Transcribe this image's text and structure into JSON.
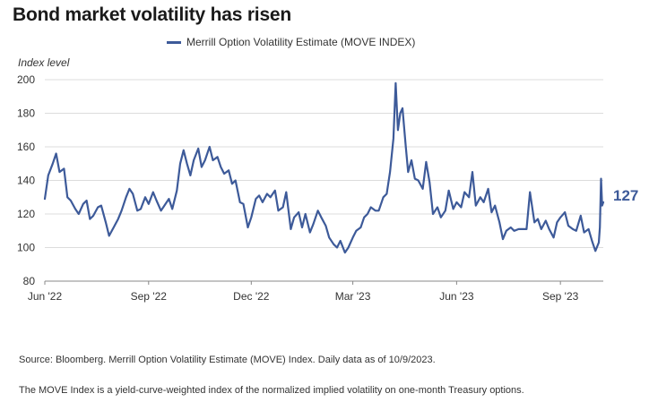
{
  "chart_data": {
    "type": "line",
    "title": "Bond market volatility has risen",
    "ylabel": "Index level",
    "xlabel": "",
    "ylim": [
      80,
      200
    ],
    "yticks": [
      80,
      100,
      120,
      140,
      160,
      180,
      200
    ],
    "xticks": [
      {
        "date": "2022-06-01",
        "label": "Jun '22"
      },
      {
        "date": "2022-09-01",
        "label": "Sep '22"
      },
      {
        "date": "2022-12-01",
        "label": "Dec '22"
      },
      {
        "date": "2023-03-01",
        "label": "Mar '23"
      },
      {
        "date": "2023-06-01",
        "label": "Jun '23"
      },
      {
        "date": "2023-09-01",
        "label": "Sep '23"
      }
    ],
    "xlim": [
      "2022-06-01",
      "2023-10-09"
    ],
    "grid": "horizontal",
    "legend_position": "top-center",
    "series": [
      {
        "name": "Merrill Option Volatility Estimate (MOVE INDEX)",
        "color": "#3d5a99",
        "end_label": "127",
        "points": [
          [
            "2022-06-01",
            129
          ],
          [
            "2022-06-04",
            143
          ],
          [
            "2022-06-08",
            150
          ],
          [
            "2022-06-11",
            156
          ],
          [
            "2022-06-14",
            145
          ],
          [
            "2022-06-18",
            147
          ],
          [
            "2022-06-21",
            130
          ],
          [
            "2022-06-24",
            128
          ],
          [
            "2022-06-28",
            123
          ],
          [
            "2022-07-01",
            120
          ],
          [
            "2022-07-05",
            126
          ],
          [
            "2022-07-08",
            128
          ],
          [
            "2022-07-11",
            117
          ],
          [
            "2022-07-14",
            119
          ],
          [
            "2022-07-18",
            124
          ],
          [
            "2022-07-21",
            125
          ],
          [
            "2022-07-25",
            115
          ],
          [
            "2022-07-28",
            107
          ],
          [
            "2022-08-01",
            112
          ],
          [
            "2022-08-05",
            117
          ],
          [
            "2022-08-08",
            122
          ],
          [
            "2022-08-12",
            130
          ],
          [
            "2022-08-15",
            135
          ],
          [
            "2022-08-18",
            132
          ],
          [
            "2022-08-22",
            122
          ],
          [
            "2022-08-25",
            123
          ],
          [
            "2022-08-29",
            130
          ],
          [
            "2022-09-01",
            126
          ],
          [
            "2022-09-05",
            133
          ],
          [
            "2022-09-08",
            128
          ],
          [
            "2022-09-12",
            122
          ],
          [
            "2022-09-15",
            125
          ],
          [
            "2022-09-19",
            129
          ],
          [
            "2022-09-22",
            123
          ],
          [
            "2022-09-26",
            134
          ],
          [
            "2022-09-29",
            150
          ],
          [
            "2022-10-02",
            158
          ],
          [
            "2022-10-05",
            150
          ],
          [
            "2022-10-08",
            143
          ],
          [
            "2022-10-11",
            152
          ],
          [
            "2022-10-15",
            159
          ],
          [
            "2022-10-18",
            148
          ],
          [
            "2022-10-21",
            152
          ],
          [
            "2022-10-25",
            160
          ],
          [
            "2022-10-28",
            152
          ],
          [
            "2022-11-01",
            154
          ],
          [
            "2022-11-04",
            148
          ],
          [
            "2022-11-07",
            144
          ],
          [
            "2022-11-11",
            146
          ],
          [
            "2022-11-14",
            138
          ],
          [
            "2022-11-17",
            140
          ],
          [
            "2022-11-21",
            127
          ],
          [
            "2022-11-24",
            126
          ],
          [
            "2022-11-28",
            112
          ],
          [
            "2022-12-01",
            118
          ],
          [
            "2022-12-05",
            129
          ],
          [
            "2022-12-08",
            131
          ],
          [
            "2022-12-11",
            127
          ],
          [
            "2022-12-15",
            132
          ],
          [
            "2022-12-18",
            130
          ],
          [
            "2022-12-22",
            134
          ],
          [
            "2022-12-25",
            122
          ],
          [
            "2022-12-29",
            124
          ],
          [
            "2023-01-01",
            133
          ],
          [
            "2023-01-05",
            111
          ],
          [
            "2023-01-08",
            118
          ],
          [
            "2023-01-12",
            121
          ],
          [
            "2023-01-15",
            112
          ],
          [
            "2023-01-18",
            120
          ],
          [
            "2023-01-22",
            109
          ],
          [
            "2023-01-25",
            114
          ],
          [
            "2023-01-29",
            122
          ],
          [
            "2023-02-01",
            118
          ],
          [
            "2023-02-05",
            113
          ],
          [
            "2023-02-08",
            106
          ],
          [
            "2023-02-12",
            102
          ],
          [
            "2023-02-15",
            100
          ],
          [
            "2023-02-18",
            104
          ],
          [
            "2023-02-22",
            97
          ],
          [
            "2023-02-25",
            100
          ],
          [
            "2023-03-01",
            106
          ],
          [
            "2023-03-04",
            110
          ],
          [
            "2023-03-08",
            112
          ],
          [
            "2023-03-11",
            118
          ],
          [
            "2023-03-14",
            120
          ],
          [
            "2023-03-17",
            124
          ],
          [
            "2023-03-21",
            122
          ],
          [
            "2023-03-24",
            122
          ],
          [
            "2023-03-28",
            130
          ],
          [
            "2023-03-31",
            132
          ],
          [
            "2023-04-03",
            145
          ],
          [
            "2023-04-06",
            165
          ],
          [
            "2023-04-08",
            198
          ],
          [
            "2023-04-10",
            170
          ],
          [
            "2023-04-12",
            180
          ],
          [
            "2023-04-14",
            183
          ],
          [
            "2023-04-17",
            160
          ],
          [
            "2023-04-19",
            145
          ],
          [
            "2023-04-22",
            152
          ],
          [
            "2023-04-25",
            141
          ],
          [
            "2023-04-28",
            140
          ],
          [
            "2023-05-02",
            135
          ],
          [
            "2023-05-05",
            151
          ],
          [
            "2023-05-08",
            139
          ],
          [
            "2023-05-11",
            120
          ],
          [
            "2023-05-15",
            124
          ],
          [
            "2023-05-18",
            118
          ],
          [
            "2023-05-22",
            122
          ],
          [
            "2023-05-25",
            134
          ],
          [
            "2023-05-29",
            123
          ],
          [
            "2023-06-01",
            127
          ],
          [
            "2023-06-05",
            124
          ],
          [
            "2023-06-08",
            133
          ],
          [
            "2023-06-12",
            130
          ],
          [
            "2023-06-15",
            145
          ],
          [
            "2023-06-18",
            125
          ],
          [
            "2023-06-22",
            130
          ],
          [
            "2023-06-25",
            127
          ],
          [
            "2023-06-29",
            135
          ],
          [
            "2023-07-02",
            121
          ],
          [
            "2023-07-05",
            125
          ],
          [
            "2023-07-09",
            115
          ],
          [
            "2023-07-12",
            105
          ],
          [
            "2023-07-15",
            110
          ],
          [
            "2023-07-19",
            112
          ],
          [
            "2023-07-22",
            110
          ],
          [
            "2023-07-26",
            111
          ],
          [
            "2023-07-29",
            111
          ],
          [
            "2023-08-02",
            111
          ],
          [
            "2023-08-05",
            133
          ],
          [
            "2023-08-09",
            115
          ],
          [
            "2023-08-12",
            117
          ],
          [
            "2023-08-15",
            111
          ],
          [
            "2023-08-19",
            116
          ],
          [
            "2023-08-22",
            111
          ],
          [
            "2023-08-26",
            106
          ],
          [
            "2023-08-29",
            115
          ],
          [
            "2023-09-01",
            118
          ],
          [
            "2023-09-05",
            121
          ],
          [
            "2023-09-08",
            113
          ],
          [
            "2023-09-12",
            111
          ],
          [
            "2023-09-15",
            110
          ],
          [
            "2023-09-19",
            119
          ],
          [
            "2023-09-22",
            109
          ],
          [
            "2023-09-26",
            111
          ],
          [
            "2023-09-29",
            104
          ],
          [
            "2023-10-02",
            98
          ],
          [
            "2023-10-05",
            103
          ],
          [
            "2023-10-06",
            112
          ],
          [
            "2023-10-07",
            141
          ],
          [
            "2023-10-08",
            125
          ],
          [
            "2023-10-09",
            127
          ]
        ]
      }
    ]
  },
  "notes": {
    "source": "Source: Bloomberg. Merrill Option Volatility Estimate (MOVE) Index. Daily data as of 10/9/2023.",
    "description": "The MOVE Index is a yield-curve-weighted index of the normalized implied volatility on one-month Treasury options."
  },
  "colors": {
    "line": "#3d5a99",
    "grid": "#dcdcdc",
    "axis": "#888888",
    "text": "#333333"
  }
}
